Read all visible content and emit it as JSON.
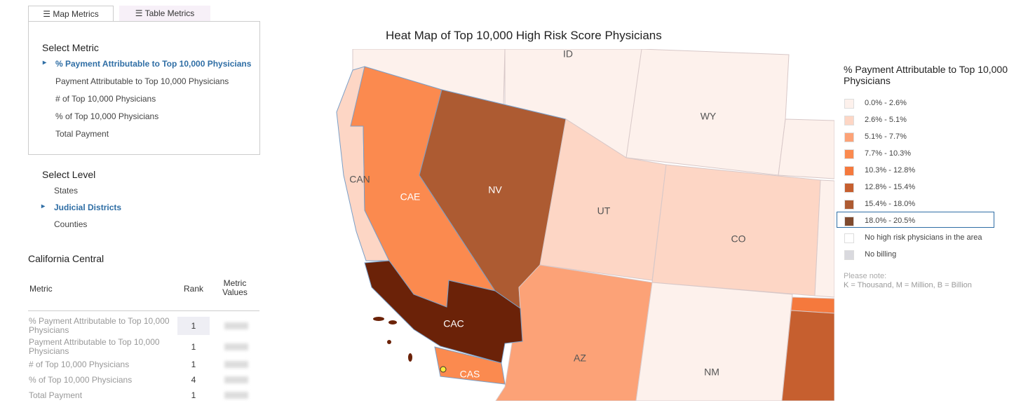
{
  "tabs": [
    "Map Metrics",
    "Table Metrics"
  ],
  "metric_panel": {
    "title": "Select Metric",
    "selected": 0,
    "options": [
      "% Payment Attributable to Top 10,000 Physicians",
      "Payment Attributable to Top 10,000 Physicians",
      "# of Top 10,000 Physicians",
      "% of Top 10,000 Physicians",
      "Total Payment"
    ]
  },
  "level_panel": {
    "title": "Select Level",
    "selected": 1,
    "options": [
      "States",
      "Judicial Districts",
      "Counties"
    ]
  },
  "detail": {
    "title": "California Central",
    "columns": [
      "Metric",
      "Rank",
      "Metric Values"
    ],
    "rows": [
      [
        "% Payment Attributable to Top 10,000 Physicians",
        "1"
      ],
      [
        "Payment Attributable to Top 10,000 Physicians",
        "1"
      ],
      [
        "# of Top 10,000 Physicians",
        "1"
      ],
      [
        "% of Top 10,000 Physicians",
        "4"
      ],
      [
        "Total Payment",
        "1"
      ]
    ]
  },
  "map": {
    "title": "Heat Map of Top 10,000 High Risk Score Physicians",
    "regions": [
      "ID",
      "WY",
      "CAN",
      "CAE",
      "NV",
      "UT",
      "CO",
      "CAC",
      "AZ",
      "NM",
      "CAS"
    ]
  },
  "legend": {
    "title": "% Payment Attributable to Top 10,000 Physicians",
    "selected": 7,
    "items": [
      {
        "label": "0.0% - 2.6%",
        "color": "#fdf1ec"
      },
      {
        "label": "2.6% - 5.1%",
        "color": "#fdd6c5"
      },
      {
        "label": "5.1% - 7.7%",
        "color": "#fca277"
      },
      {
        "label": "7.7% - 10.3%",
        "color": "#fb8a4f"
      },
      {
        "label": "10.3% - 12.8%",
        "color": "#f5793d"
      },
      {
        "label": "12.8% - 15.4%",
        "color": "#c65f2f"
      },
      {
        "label": "15.4% - 18.0%",
        "color": "#ad5b32"
      },
      {
        "label": "18.0% - 20.5%",
        "color": "#7f4a2e"
      },
      {
        "label": "No high risk physicians in the area",
        "color": "#ffffff"
      },
      {
        "label": "No billing",
        "color": "#d9d9de"
      }
    ]
  },
  "note": {
    "title": "Please note:",
    "text": "K = Thousand, M = Million, B = Billion"
  }
}
